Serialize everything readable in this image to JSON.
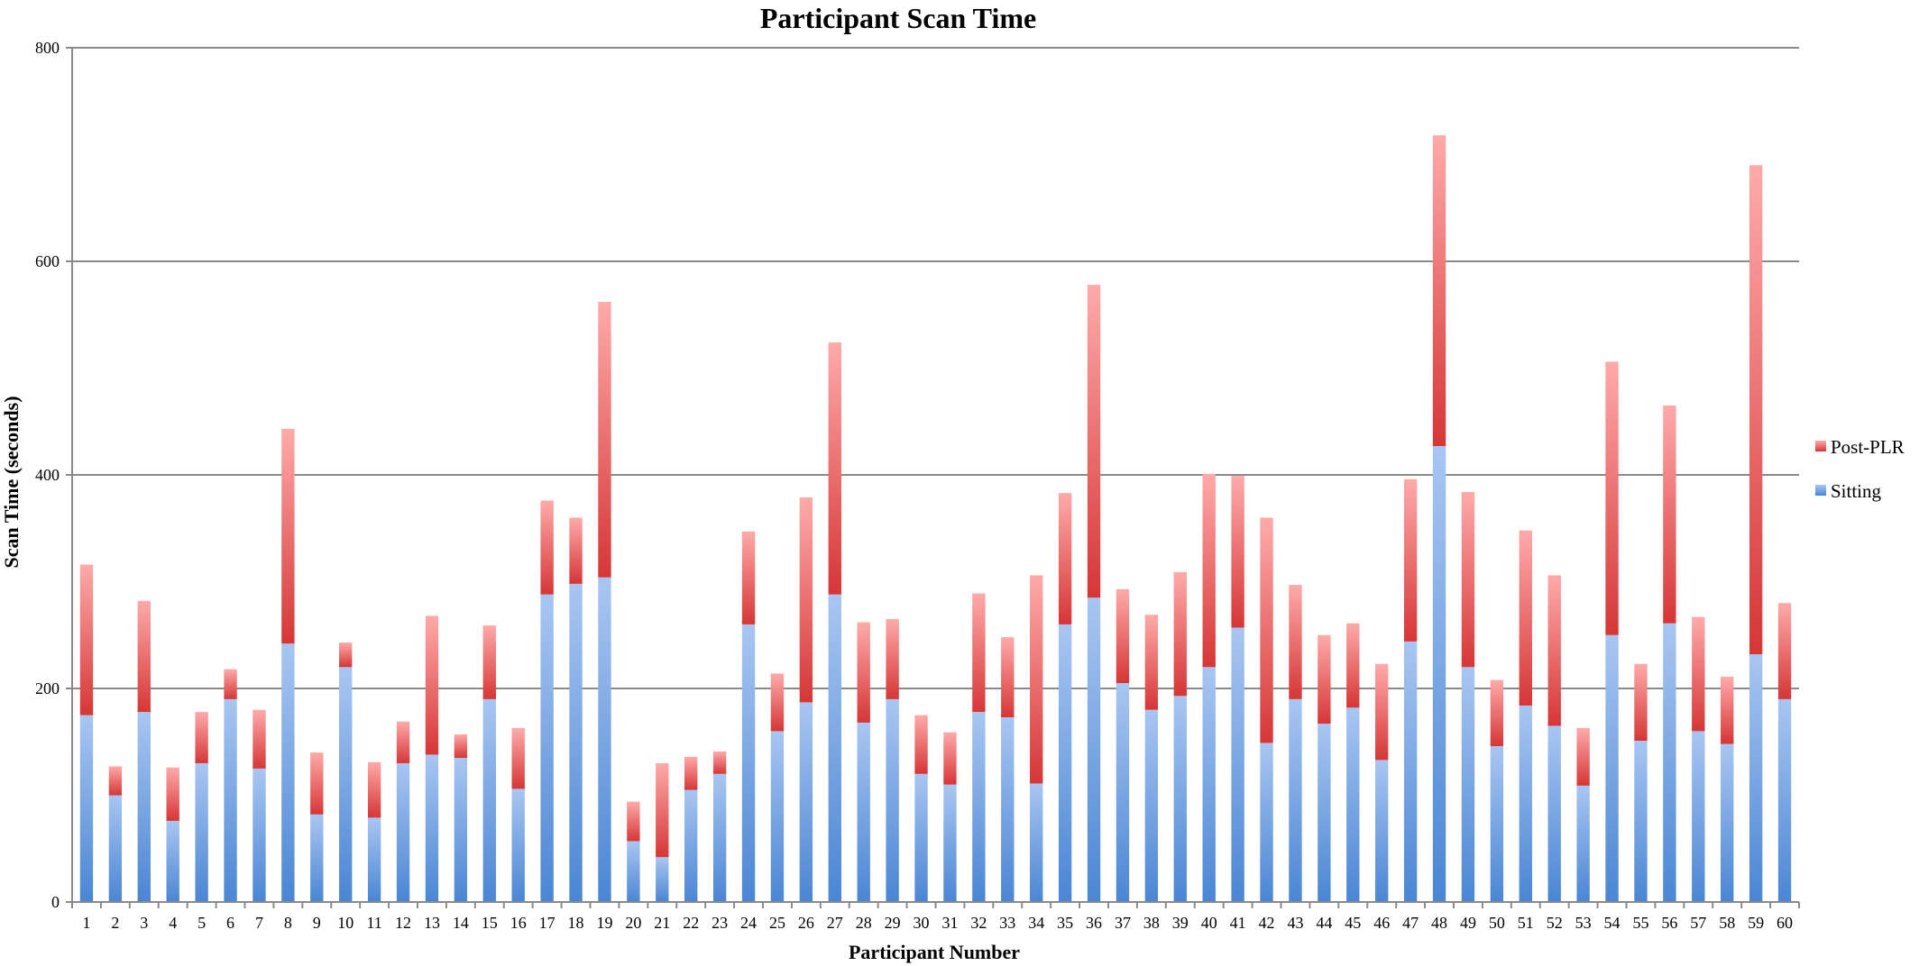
{
  "chart_data": {
    "type": "bar",
    "stacked": true,
    "title": "Participant Scan Time",
    "xlabel": "Participant Number",
    "ylabel": "Scan Time (seconds)",
    "ylim": [
      0,
      800
    ],
    "yticks": [
      0,
      200,
      400,
      600,
      800
    ],
    "grid": true,
    "legend_position": "right",
    "categories": [
      "1",
      "2",
      "3",
      "4",
      "5",
      "6",
      "7",
      "8",
      "9",
      "10",
      "11",
      "12",
      "13",
      "14",
      "15",
      "16",
      "17",
      "18",
      "19",
      "20",
      "21",
      "22",
      "23",
      "24",
      "25",
      "26",
      "27",
      "28",
      "29",
      "30",
      "31",
      "32",
      "33",
      "34",
      "35",
      "36",
      "37",
      "38",
      "39",
      "40",
      "41",
      "42",
      "43",
      "44",
      "45",
      "46",
      "47",
      "48",
      "49",
      "50",
      "51",
      "52",
      "53",
      "54",
      "55",
      "56",
      "57",
      "58",
      "59",
      "60"
    ],
    "series": [
      {
        "name": "Sitting",
        "color": "#4a86d4",
        "color_light": "#a9c6f2",
        "values": [
          175,
          100,
          178,
          76,
          130,
          190,
          125,
          242,
          82,
          220,
          79,
          130,
          138,
          135,
          190,
          106,
          288,
          298,
          304,
          57,
          42,
          105,
          120,
          260,
          160,
          187,
          288,
          168,
          190,
          120,
          110,
          178,
          173,
          111,
          260,
          285,
          205,
          180,
          193,
          220,
          257,
          149,
          190,
          167,
          182,
          133,
          244,
          427,
          220,
          146,
          184,
          165,
          109,
          250,
          151,
          261,
          160,
          148,
          232,
          190
        ]
      },
      {
        "name": "Post-PLR",
        "color": "#d63636",
        "color_light": "#ffaaaa",
        "values": [
          141,
          27,
          104,
          50,
          48,
          28,
          55,
          201,
          58,
          23,
          52,
          39,
          130,
          22,
          69,
          57,
          88,
          62,
          258,
          37,
          88,
          31,
          21,
          87,
          54,
          192,
          236,
          94,
          75,
          55,
          49,
          111,
          75,
          195,
          123,
          293,
          88,
          89,
          116,
          181,
          142,
          211,
          107,
          83,
          79,
          90,
          152,
          291,
          164,
          62,
          164,
          141,
          54,
          256,
          72,
          204,
          107,
          63,
          458,
          90
        ]
      }
    ]
  }
}
